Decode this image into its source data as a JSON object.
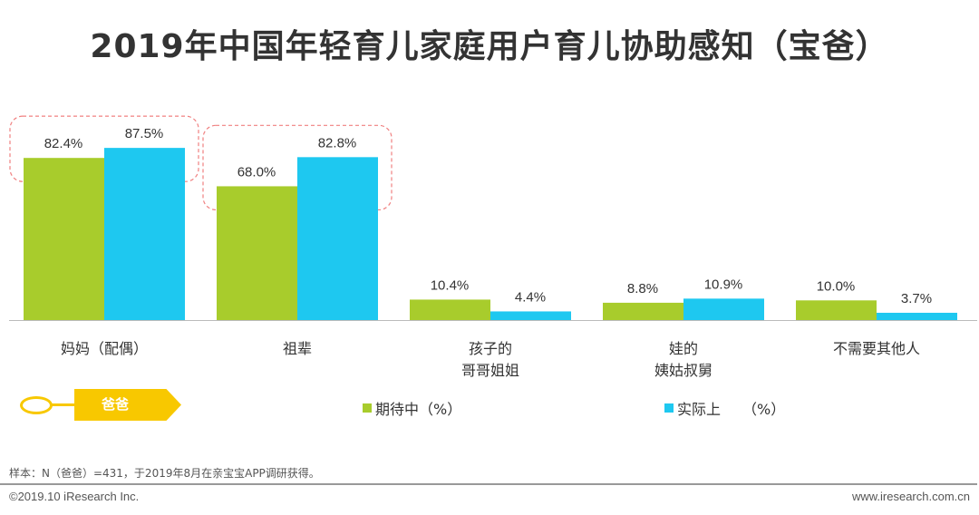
{
  "title": "2019年中国年轻育儿家庭用户育儿协助感知（宝爸）",
  "chart_data": {
    "type": "bar",
    "title": "2019年中国年轻育儿家庭用户育儿协助感知（宝爸）",
    "categories": [
      "妈妈（配偶）",
      "祖辈",
      "孩子的\n哥哥姐姐",
      "娃的\n姨姑叔舅",
      "不需要其他人"
    ],
    "series": [
      {
        "name": "期待中（%）",
        "color": "#a8cc2c",
        "values": [
          82.4,
          68.0,
          10.4,
          8.8,
          10.0
        ]
      },
      {
        "name": "实际上　　（%）",
        "color": "#1ec8f0",
        "values": [
          87.5,
          82.8,
          4.4,
          10.9,
          3.7
        ]
      }
    ],
    "ylim": [
      0,
      100
    ],
    "xlabel": "",
    "ylabel": "",
    "grid": false,
    "legend_position": "bottom-center",
    "highlighted_categories": [
      "妈妈（配偶）",
      "祖辈"
    ]
  },
  "tag_label": "爸爸",
  "note": "样本：N（爸爸）=431，于2019年8月在亲宝宝APP调研获得。",
  "copyright": "©2019.10 iResearch Inc.",
  "website": "www.iresearch.com.cn"
}
